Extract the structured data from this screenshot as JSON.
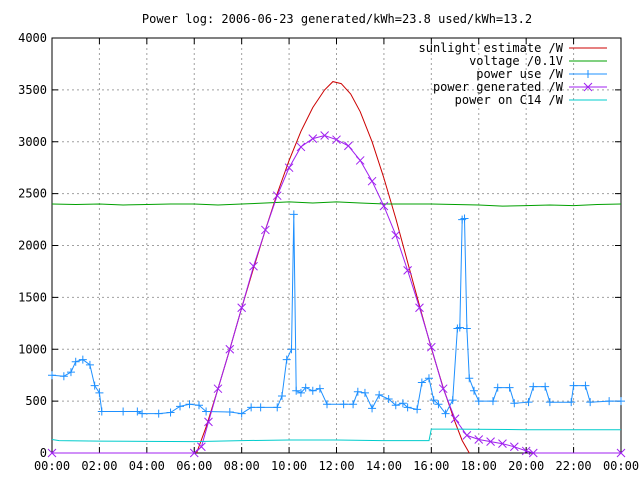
{
  "chart_data": {
    "type": "line",
    "title": "Power log: 2006-06-23 generated/kWh=23.8 used/kWh=13.2",
    "xlabel": "",
    "ylabel": "",
    "x_ticks": [
      "00:00",
      "02:00",
      "04:00",
      "06:00",
      "08:00",
      "10:00",
      "12:00",
      "14:00",
      "16:00",
      "18:00",
      "20:00",
      "22:00",
      "00:00"
    ],
    "x_range_hours": [
      0,
      24
    ],
    "y_ticks": [
      0,
      500,
      1000,
      1500,
      2000,
      2500,
      3000,
      3500,
      4000
    ],
    "ylim": [
      0,
      4000
    ],
    "grid": true,
    "legend_position": "top-right",
    "series": [
      {
        "name": "sunlight estimate /W",
        "color": "#cc0000",
        "marker": "none",
        "points": [
          [
            6.1,
            0
          ],
          [
            6.5,
            250
          ],
          [
            7.0,
            620
          ],
          [
            7.5,
            1000
          ],
          [
            8.0,
            1400
          ],
          [
            8.5,
            1780
          ],
          [
            9.0,
            2150
          ],
          [
            9.5,
            2500
          ],
          [
            10.0,
            2820
          ],
          [
            10.5,
            3100
          ],
          [
            11.0,
            3330
          ],
          [
            11.5,
            3500
          ],
          [
            11.85,
            3580
          ],
          [
            12.2,
            3560
          ],
          [
            12.6,
            3460
          ],
          [
            13.0,
            3290
          ],
          [
            13.5,
            3000
          ],
          [
            14.0,
            2650
          ],
          [
            14.5,
            2260
          ],
          [
            15.0,
            1840
          ],
          [
            15.5,
            1420
          ],
          [
            16.0,
            1010
          ],
          [
            16.5,
            630
          ],
          [
            17.0,
            300
          ],
          [
            17.3,
            120
          ],
          [
            17.6,
            0
          ]
        ]
      },
      {
        "name": "voltage /0.1V",
        "color": "#00a000",
        "marker": "none",
        "points": [
          [
            0,
            2400
          ],
          [
            1,
            2395
          ],
          [
            2,
            2400
          ],
          [
            3,
            2390
          ],
          [
            4,
            2395
          ],
          [
            5,
            2400
          ],
          [
            6,
            2400
          ],
          [
            7,
            2390
          ],
          [
            8,
            2400
          ],
          [
            9,
            2410
          ],
          [
            10,
            2420
          ],
          [
            11,
            2410
          ],
          [
            12,
            2420
          ],
          [
            13,
            2410
          ],
          [
            14,
            2400
          ],
          [
            15,
            2400
          ],
          [
            16,
            2400
          ],
          [
            17,
            2395
          ],
          [
            18,
            2390
          ],
          [
            19,
            2380
          ],
          [
            20,
            2385
          ],
          [
            21,
            2390
          ],
          [
            22,
            2385
          ],
          [
            23,
            2395
          ],
          [
            24,
            2400
          ]
        ]
      },
      {
        "name": "power use /W",
        "color": "#1e90ff",
        "marker": "plus",
        "points": [
          [
            0,
            750
          ],
          [
            0.5,
            740
          ],
          [
            0.8,
            780
          ],
          [
            1.0,
            880
          ],
          [
            1.3,
            900
          ],
          [
            1.6,
            850
          ],
          [
            1.8,
            650
          ],
          [
            2.0,
            580
          ],
          [
            2.1,
            400
          ],
          [
            3.0,
            400
          ],
          [
            3.6,
            400
          ],
          [
            3.8,
            380
          ],
          [
            4.5,
            380
          ],
          [
            5.0,
            390
          ],
          [
            5.4,
            450
          ],
          [
            5.8,
            470
          ],
          [
            6.2,
            460
          ],
          [
            6.5,
            400
          ],
          [
            7.5,
            395
          ],
          [
            8.0,
            380
          ],
          [
            8.4,
            440
          ],
          [
            8.8,
            440
          ],
          [
            9.5,
            440
          ],
          [
            9.7,
            550
          ],
          [
            9.9,
            900
          ],
          [
            10.1,
            1000
          ],
          [
            10.2,
            2300
          ],
          [
            10.3,
            600
          ],
          [
            10.5,
            580
          ],
          [
            10.7,
            630
          ],
          [
            11.0,
            600
          ],
          [
            11.3,
            620
          ],
          [
            11.6,
            470
          ],
          [
            12.3,
            470
          ],
          [
            12.7,
            470
          ],
          [
            12.9,
            590
          ],
          [
            13.2,
            580
          ],
          [
            13.5,
            430
          ],
          [
            13.8,
            560
          ],
          [
            14.2,
            520
          ],
          [
            14.5,
            460
          ],
          [
            14.8,
            480
          ],
          [
            15.0,
            440
          ],
          [
            15.4,
            420
          ],
          [
            15.6,
            680
          ],
          [
            15.9,
            720
          ],
          [
            16.1,
            510
          ],
          [
            16.3,
            470
          ],
          [
            16.6,
            380
          ],
          [
            16.9,
            510
          ],
          [
            17.1,
            1200
          ],
          [
            17.2,
            1210
          ],
          [
            17.3,
            2250
          ],
          [
            17.4,
            2260
          ],
          [
            17.5,
            1200
          ],
          [
            17.6,
            720
          ],
          [
            17.8,
            600
          ],
          [
            18.0,
            500
          ],
          [
            18.6,
            500
          ],
          [
            18.8,
            630
          ],
          [
            19.3,
            630
          ],
          [
            19.5,
            480
          ],
          [
            20.1,
            490
          ],
          [
            20.3,
            640
          ],
          [
            20.8,
            640
          ],
          [
            21.0,
            490
          ],
          [
            21.9,
            490
          ],
          [
            22.0,
            650
          ],
          [
            22.5,
            650
          ],
          [
            22.7,
            490
          ],
          [
            23.5,
            500
          ],
          [
            24.0,
            500
          ]
        ]
      },
      {
        "name": "power generated /W",
        "color": "#a020f0",
        "marker": "cross",
        "points": [
          [
            0,
            0
          ],
          [
            6.0,
            0
          ],
          [
            6.3,
            60
          ],
          [
            6.6,
            300
          ],
          [
            7.0,
            620
          ],
          [
            7.5,
            1000
          ],
          [
            8.0,
            1400
          ],
          [
            8.5,
            1800
          ],
          [
            9.0,
            2150
          ],
          [
            9.5,
            2480
          ],
          [
            10.0,
            2750
          ],
          [
            10.5,
            2950
          ],
          [
            11.0,
            3030
          ],
          [
            11.5,
            3060
          ],
          [
            12.0,
            3020
          ],
          [
            12.5,
            2960
          ],
          [
            13.0,
            2820
          ],
          [
            13.5,
            2620
          ],
          [
            14.0,
            2380
          ],
          [
            14.5,
            2100
          ],
          [
            15.0,
            1760
          ],
          [
            15.5,
            1400
          ],
          [
            16.0,
            1020
          ],
          [
            16.5,
            620
          ],
          [
            17.0,
            330
          ],
          [
            17.5,
            170
          ],
          [
            18.0,
            130
          ],
          [
            18.5,
            110
          ],
          [
            19.0,
            90
          ],
          [
            19.5,
            60
          ],
          [
            20.0,
            20
          ],
          [
            20.3,
            0
          ],
          [
            24.0,
            0
          ]
        ]
      },
      {
        "name": "power on C14 /W",
        "color": "#00cccc",
        "marker": "none",
        "points": [
          [
            0,
            130
          ],
          [
            0.3,
            120
          ],
          [
            2,
            115
          ],
          [
            4,
            112
          ],
          [
            6,
            110
          ],
          [
            8,
            120
          ],
          [
            10,
            125
          ],
          [
            12,
            125
          ],
          [
            14,
            120
          ],
          [
            15.9,
            120
          ],
          [
            16.0,
            230
          ],
          [
            17,
            230
          ],
          [
            20,
            225
          ],
          [
            22,
            225
          ],
          [
            24,
            225
          ]
        ]
      }
    ]
  }
}
